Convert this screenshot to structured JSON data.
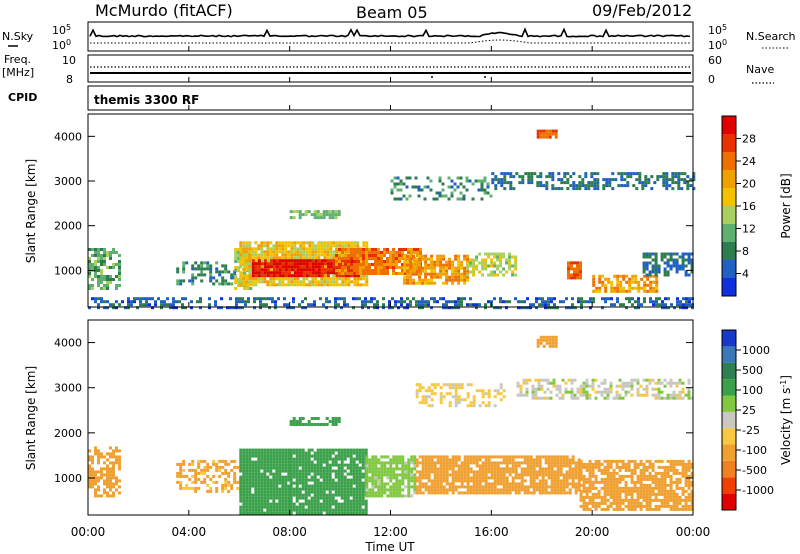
{
  "header": {
    "station": "McMurdo (fitACF)",
    "beam": "Beam 05",
    "date": "09/Feb/2012"
  },
  "noise_panel": {
    "left_label": "N.Sky",
    "right_label": "N.Search",
    "tick_top_left": "10^5",
    "tick_bottom_left": "10^0",
    "tick_top_right": "10^5",
    "tick_bottom_right": "10^0"
  },
  "freq_panel": {
    "left_label_1": "Freq.",
    "left_label_2": "[MHz]",
    "right_label": "Nave",
    "left_ticks": [
      "10",
      "8"
    ],
    "right_ticks": [
      "60",
      "0"
    ]
  },
  "cpid_panel": {
    "label": "CPID",
    "mode_text": "themis 3300 RF"
  },
  "time_axis": {
    "label": "Time UT",
    "ticks": [
      "00:00",
      "04:00",
      "08:00",
      "12:00",
      "16:00",
      "20:00",
      "00:00"
    ]
  },
  "range_axis": {
    "label": "Slant Range [km]",
    "ticks": [
      "1000",
      "2000",
      "3000",
      "4000"
    ]
  },
  "power_colorbar": {
    "label": "Power [dB]",
    "ticks": [
      "4",
      "8",
      "12",
      "16",
      "20",
      "24",
      "28"
    ],
    "colors": [
      "#1030e0",
      "#2060c0",
      "#2e7d4f",
      "#5fb070",
      "#a8d060",
      "#f2c200",
      "#f0a000",
      "#ee7000",
      "#e83000",
      "#e00000"
    ]
  },
  "velocity_colorbar": {
    "label": "Velocity [m s^-1]",
    "ticks": [
      "1000",
      "500",
      "100",
      "25",
      "-25",
      "-100",
      "-500",
      "-1000"
    ],
    "colors": [
      "#1838c8",
      "#3a78b8",
      "#2e8050",
      "#3aa04a",
      "#80c840",
      "#c8c8c0",
      "#f8c840",
      "#f0a030",
      "#f08020",
      "#f04000",
      "#e00000"
    ]
  },
  "chart_data": {
    "type": "heatmap",
    "x_unit": "hours UT",
    "xlim": [
      0,
      24
    ],
    "ylim": [
      180,
      4500
    ],
    "power_panel": {
      "value_range_db": [
        0,
        30
      ],
      "regions": [
        {
          "start": 0.0,
          "end": 1.3,
          "r0": 600,
          "r1": 1500,
          "level": 10,
          "density": 0.6
        },
        {
          "start": 3.5,
          "end": 5.8,
          "r0": 700,
          "r1": 1200,
          "level": 8,
          "density": 0.4
        },
        {
          "start": 5.8,
          "end": 6.4,
          "r0": 600,
          "r1": 1500,
          "level": 14,
          "density": 0.8
        },
        {
          "start": 6.0,
          "end": 11.0,
          "r0": 650,
          "r1": 1650,
          "level": 17,
          "density": 0.9
        },
        {
          "start": 6.5,
          "end": 10.7,
          "r0": 850,
          "r1": 1250,
          "level": 27,
          "density": 0.95
        },
        {
          "start": 9.8,
          "end": 13.2,
          "r0": 950,
          "r1": 1500,
          "level": 22,
          "density": 0.9
        },
        {
          "start": 12.5,
          "end": 15.0,
          "r0": 700,
          "r1": 1350,
          "level": 20,
          "density": 0.8
        },
        {
          "start": 15.0,
          "end": 17.0,
          "r0": 900,
          "r1": 1400,
          "level": 14,
          "density": 0.6
        },
        {
          "start": 17.8,
          "end": 18.6,
          "r0": 3950,
          "r1": 4150,
          "level": 24,
          "density": 0.9
        },
        {
          "start": 19.0,
          "end": 19.5,
          "r0": 800,
          "r1": 1200,
          "level": 24,
          "density": 0.9
        },
        {
          "start": 20.0,
          "end": 22.5,
          "r0": 500,
          "r1": 900,
          "level": 20,
          "density": 0.7
        },
        {
          "start": 22.0,
          "end": 24.0,
          "r0": 900,
          "r1": 1400,
          "level": 6,
          "density": 0.6
        },
        {
          "start": 8.0,
          "end": 10.0,
          "r0": 2200,
          "r1": 2350,
          "level": 12,
          "density": 0.7
        },
        {
          "start": 12.0,
          "end": 16.0,
          "r0": 2600,
          "r1": 3100,
          "level": 8,
          "density": 0.35
        },
        {
          "start": 16.0,
          "end": 24.0,
          "r0": 2800,
          "r1": 3200,
          "level": 6,
          "density": 0.5
        },
        {
          "start": 0.0,
          "end": 24.0,
          "r0": 180,
          "r1": 400,
          "level": 5,
          "density": 0.45
        }
      ]
    },
    "velocity_panel": {
      "value_range_ms": [
        -1000,
        1000
      ],
      "regions": [
        {
          "start": 0.0,
          "end": 1.3,
          "r0": 600,
          "r1": 1700,
          "velocity": -150,
          "density": 0.6
        },
        {
          "start": 3.5,
          "end": 6.0,
          "r0": 700,
          "r1": 1400,
          "velocity": -120,
          "density": 0.45
        },
        {
          "start": 6.0,
          "end": 8.0,
          "r0": 250,
          "r1": 1650,
          "velocity": 150,
          "density": 0.95
        },
        {
          "start": 8.0,
          "end": 11.0,
          "r0": 250,
          "r1": 1650,
          "velocity": 200,
          "density": 0.9
        },
        {
          "start": 11.0,
          "end": 13.0,
          "r0": 600,
          "r1": 1500,
          "velocity": 60,
          "density": 0.85
        },
        {
          "start": 13.0,
          "end": 19.5,
          "r0": 700,
          "r1": 1500,
          "velocity": -180,
          "density": 0.85
        },
        {
          "start": 19.5,
          "end": 24.0,
          "r0": 300,
          "r1": 1400,
          "velocity": -150,
          "density": 0.75
        },
        {
          "start": 8.0,
          "end": 10.0,
          "r0": 2200,
          "r1": 2350,
          "velocity": 150,
          "density": 0.7
        },
        {
          "start": 13.0,
          "end": 16.5,
          "r0": 2600,
          "r1": 3100,
          "velocity": -40,
          "density": 0.4
        },
        {
          "start": 17.0,
          "end": 24.0,
          "r0": 2800,
          "r1": 3200,
          "velocity": 0,
          "density": 0.55
        },
        {
          "start": 17.8,
          "end": 18.6,
          "r0": 3950,
          "r1": 4150,
          "velocity": -200,
          "density": 0.9
        }
      ]
    }
  }
}
